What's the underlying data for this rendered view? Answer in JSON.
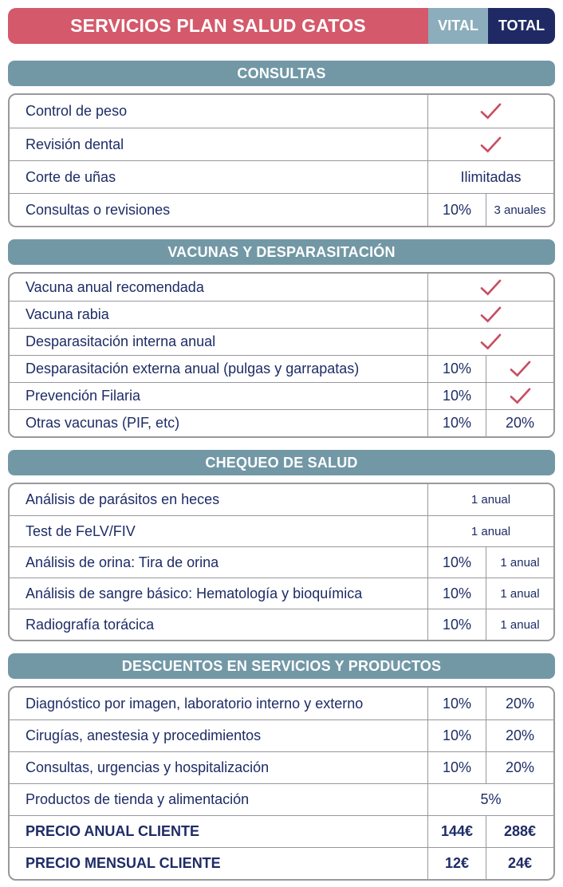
{
  "header": {
    "title": "SERVICIOS PLAN SALUD GATOS",
    "vital_label": "VITAL",
    "total_label": "TOTAL"
  },
  "colors": {
    "brand_red": "#d4596b",
    "vital_teal": "#8cadbb",
    "total_navy": "#1f2963",
    "section_teal": "#7298a6",
    "text_navy": "#1e2c66",
    "check_red": "#c84e62",
    "border_gray": "#98989d"
  },
  "icons": {
    "check": "checkmark-icon"
  },
  "sections": [
    {
      "title": "CONSULTAS",
      "rows": [
        {
          "label": "Control de peso",
          "cells": [
            {
              "kind": "check"
            }
          ]
        },
        {
          "label": "Revisión dental",
          "cells": [
            {
              "kind": "check"
            }
          ]
        },
        {
          "label": "Corte de uñas",
          "cells": [
            {
              "kind": "text",
              "text": "Ilimitadas"
            }
          ]
        },
        {
          "label": "Consultas o revisiones",
          "cells": [
            {
              "kind": "text",
              "text": "10%"
            },
            {
              "kind": "text",
              "text": "3 anuales",
              "small": true
            }
          ]
        }
      ]
    },
    {
      "title": "VACUNAS Y DESPARASITACIÓN",
      "rows": [
        {
          "label": "Vacuna anual recomendada",
          "cells": [
            {
              "kind": "check"
            }
          ]
        },
        {
          "label": "Vacuna rabia",
          "cells": [
            {
              "kind": "check"
            }
          ]
        },
        {
          "label": "Desparasitación interna anual",
          "cells": [
            {
              "kind": "check"
            }
          ]
        },
        {
          "label": "Desparasitación externa anual (pulgas y garrapatas)",
          "cells": [
            {
              "kind": "text",
              "text": "10%"
            },
            {
              "kind": "check"
            }
          ]
        },
        {
          "label": "Prevención Filaria",
          "cells": [
            {
              "kind": "text",
              "text": "10%"
            },
            {
              "kind": "check"
            }
          ]
        },
        {
          "label": "Otras vacunas (PIF, etc)",
          "cells": [
            {
              "kind": "text",
              "text": "10%"
            },
            {
              "kind": "text",
              "text": "20%"
            }
          ]
        }
      ]
    },
    {
      "title": "CHEQUEO DE SALUD",
      "rows": [
        {
          "label": "Análisis de parásitos en heces",
          "cells": [
            {
              "kind": "text",
              "text": "1 anual",
              "small": true
            }
          ]
        },
        {
          "label": "Test de FeLV/FIV",
          "cells": [
            {
              "kind": "text",
              "text": "1 anual",
              "small": true
            }
          ]
        },
        {
          "label": "Análisis de orina: Tira de orina",
          "cells": [
            {
              "kind": "text",
              "text": "10%"
            },
            {
              "kind": "text",
              "text": "1 anual",
              "small": true
            }
          ]
        },
        {
          "label": "Análisis de sangre básico: Hematología y bioquímica",
          "cells": [
            {
              "kind": "text",
              "text": "10%"
            },
            {
              "kind": "text",
              "text": "1 anual",
              "small": true
            }
          ]
        },
        {
          "label": "Radiografía torácica",
          "cells": [
            {
              "kind": "text",
              "text": "10%"
            },
            {
              "kind": "text",
              "text": "1 anual",
              "small": true
            }
          ]
        }
      ]
    },
    {
      "title": "DESCUENTOS EN SERVICIOS Y PRODUCTOS",
      "rows": [
        {
          "label": "Diagnóstico por imagen, laboratorio interno y externo",
          "cells": [
            {
              "kind": "text",
              "text": "10%"
            },
            {
              "kind": "text",
              "text": "20%"
            }
          ]
        },
        {
          "label": "Cirugías, anestesia y procedimientos",
          "cells": [
            {
              "kind": "text",
              "text": "10%"
            },
            {
              "kind": "text",
              "text": "20%"
            }
          ]
        },
        {
          "label": "Consultas, urgencias y hospitalización",
          "cells": [
            {
              "kind": "text",
              "text": "10%"
            },
            {
              "kind": "text",
              "text": "20%"
            }
          ]
        },
        {
          "label": "Productos de tienda y alimentación",
          "cells": [
            {
              "kind": "text",
              "text": "5%"
            }
          ]
        },
        {
          "label": "PRECIO ANUAL CLIENTE",
          "bold": true,
          "cells": [
            {
              "kind": "text",
              "text": "144€"
            },
            {
              "kind": "text",
              "text": "288€"
            }
          ]
        },
        {
          "label": "PRECIO MENSUAL CLIENTE",
          "bold": true,
          "cells": [
            {
              "kind": "text",
              "text": "12€"
            },
            {
              "kind": "text",
              "text": "24€"
            }
          ]
        }
      ]
    }
  ]
}
